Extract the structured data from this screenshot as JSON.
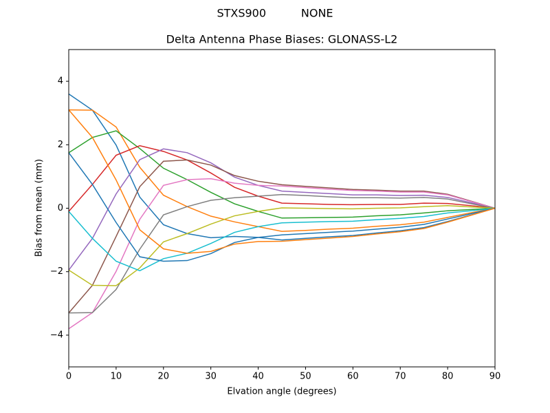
{
  "chart_data": {
    "type": "line",
    "suptitle": "STXS900          NONE",
    "title": "Delta Antenna Phase Biases: GLONASS-L2",
    "xlabel": "Elvation angle (degrees)",
    "ylabel": "Bias from mean (mm)",
    "x": [
      0,
      5,
      10,
      15,
      20,
      25,
      30,
      35,
      40,
      45,
      50,
      55,
      60,
      65,
      70,
      75,
      80,
      85,
      90
    ],
    "xlim": [
      0,
      90
    ],
    "xticks": [
      0,
      10,
      20,
      30,
      40,
      50,
      60,
      70,
      80,
      90
    ],
    "ylim": [
      -5,
      5
    ],
    "yticks": [
      -4,
      -2,
      0,
      2,
      4
    ],
    "grid": false,
    "series": [
      {
        "color": "#1f77b4",
        "values": [
          3.6,
          3.09,
          1.99,
          0.35,
          -0.52,
          -0.8,
          -0.93,
          -0.89,
          -0.92,
          -1.0,
          -0.95,
          -0.9,
          -0.86,
          -0.78,
          -0.71,
          -0.61,
          -0.42,
          -0.21,
          0
        ]
      },
      {
        "color": "#ff7f0e",
        "values": [
          3.1,
          3.09,
          2.56,
          1.29,
          0.41,
          0.05,
          -0.25,
          -0.43,
          -0.58,
          -0.73,
          -0.7,
          -0.66,
          -0.63,
          -0.57,
          -0.52,
          -0.44,
          -0.29,
          -0.14,
          0
        ]
      },
      {
        "color": "#2ca02c",
        "values": [
          1.75,
          2.23,
          2.44,
          1.88,
          1.26,
          0.9,
          0.5,
          0.14,
          -0.1,
          -0.31,
          -0.3,
          -0.29,
          -0.28,
          -0.24,
          -0.21,
          -0.15,
          -0.08,
          -0.04,
          0
        ]
      },
      {
        "color": "#d62728",
        "values": [
          -0.1,
          0.75,
          1.67,
          1.97,
          1.79,
          1.52,
          1.11,
          0.66,
          0.38,
          0.16,
          0.14,
          0.12,
          0.11,
          0.12,
          0.12,
          0.16,
          0.15,
          0.08,
          0
        ]
      },
      {
        "color": "#9467bd",
        "values": [
          -1.95,
          -0.95,
          0.45,
          1.53,
          1.87,
          1.75,
          1.43,
          0.98,
          0.72,
          0.54,
          0.5,
          0.46,
          0.42,
          0.42,
          0.4,
          0.41,
          0.34,
          0.17,
          0
        ]
      },
      {
        "color": "#8c564b",
        "values": [
          -3.3,
          -2.43,
          -0.89,
          0.68,
          1.48,
          1.52,
          1.36,
          1.03,
          0.85,
          0.74,
          0.69,
          0.64,
          0.59,
          0.57,
          0.54,
          0.54,
          0.44,
          0.22,
          0
        ]
      },
      {
        "color": "#e377c2",
        "values": [
          -3.8,
          -3.29,
          -1.99,
          -0.35,
          0.72,
          0.9,
          0.93,
          0.79,
          0.72,
          0.7,
          0.65,
          0.6,
          0.56,
          0.54,
          0.51,
          0.51,
          0.42,
          0.21,
          0
        ]
      },
      {
        "color": "#7f7f7f",
        "values": [
          -3.3,
          -3.29,
          -2.56,
          -1.29,
          -0.21,
          0.05,
          0.25,
          0.33,
          0.38,
          0.43,
          0.4,
          0.36,
          0.33,
          0.33,
          0.32,
          0.34,
          0.29,
          0.14,
          0
        ]
      },
      {
        "color": "#bcbd22",
        "values": [
          -1.95,
          -2.43,
          -2.44,
          -1.88,
          -1.06,
          -0.8,
          -0.5,
          -0.24,
          -0.1,
          0.01,
          0,
          -0.01,
          -0.02,
          0,
          0.01,
          0.05,
          0.08,
          0.04,
          0
        ]
      },
      {
        "color": "#17becf",
        "values": [
          -0.1,
          -0.95,
          -1.67,
          -1.97,
          -1.59,
          -1.42,
          -1.11,
          -0.76,
          -0.58,
          -0.46,
          -0.44,
          -0.42,
          -0.41,
          -0.36,
          -0.32,
          -0.26,
          -0.15,
          -0.08,
          0
        ]
      },
      {
        "color": "#1f77b4",
        "values": [
          1.75,
          0.75,
          -0.45,
          -1.53,
          -1.67,
          -1.65,
          -1.43,
          -1.08,
          -0.92,
          -0.84,
          -0.8,
          -0.76,
          -0.72,
          -0.66,
          -0.6,
          -0.51,
          -0.34,
          -0.17,
          0
        ]
      },
      {
        "color": "#ff7f0e",
        "values": [
          3.1,
          2.23,
          0.89,
          -0.68,
          -1.28,
          -1.42,
          -1.36,
          -1.13,
          -1.05,
          -1.04,
          -0.99,
          -0.94,
          -0.89,
          -0.81,
          -0.74,
          -0.64,
          -0.44,
          -0.22,
          0
        ]
      }
    ]
  }
}
